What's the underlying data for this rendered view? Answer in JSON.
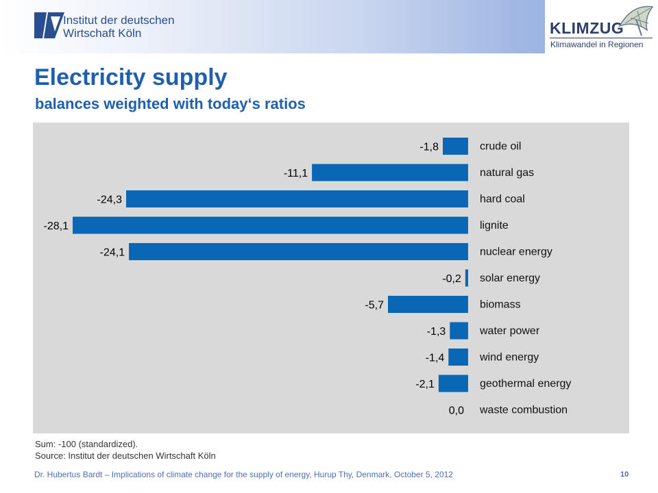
{
  "header": {
    "institute_line1": "Institut der deutschen",
    "institute_line2": "Wirtschaft Köln",
    "partner_logo_word": "KLIMZUG",
    "partner_logo_sub": "Klimawandel in Regionen"
  },
  "slide": {
    "title": "Electricity supply",
    "subtitle": "balances weighted with today‘s ratios"
  },
  "notes": {
    "sum": "Sum: -100 (standardized).",
    "source": "Source: Institut der deutschen Wirtschaft Köln"
  },
  "footer": {
    "text": "Dr. Hubertus Bardt – Implications of climate change for the supply of energy, Hurup Thy, Denmark, October 5, 2012",
    "page_number": "10"
  },
  "colors": {
    "bar": "#0a67b6",
    "panel": "#d9d9d9",
    "title": "#1f5fae"
  },
  "chart_data": {
    "type": "bar",
    "orientation": "horizontal",
    "categories": [
      "crude oil",
      "natural gas",
      "hard coal",
      "lignite",
      "nuclear energy",
      "solar energy",
      "biomass",
      "water power",
      "wind energy",
      "geothermal energy",
      "waste combustion"
    ],
    "values": [
      -1.8,
      -11.1,
      -24.3,
      -28.1,
      -24.1,
      -0.2,
      -5.7,
      -1.3,
      -1.4,
      -2.1,
      0.0
    ],
    "value_labels": [
      "-1,8",
      "-11,1",
      "-24,3",
      "-28,1",
      "-24,1",
      "-0,2",
      "-5,7",
      "-1,3",
      "-1,4",
      "-2,1",
      "0,0"
    ],
    "xlim": [
      -28.1,
      0
    ],
    "grid": false,
    "legend": false
  }
}
